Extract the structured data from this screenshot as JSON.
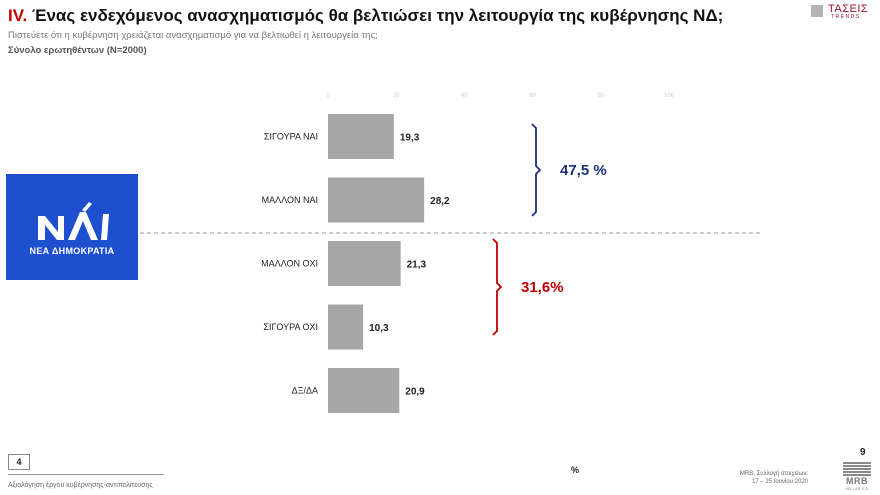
{
  "header": {
    "roman": "IV.",
    "title": "Ένας ενδεχόμενος ανασχηματισμός θα βελτιώσει την λειτουργία της κυβέρνησης ΝΔ;",
    "subtitle": "Πιστεύετε ότι η κυβέρνηση χρειάζεται ανασχηματισμό για να βελτιωθεί η λειτουργεία της;",
    "sample": "Σύνολο ερωτηθέντων (N=2000)"
  },
  "brand": {
    "name": "ΤΑΣΕΙΣ",
    "sub": "TRENDS"
  },
  "logo": {
    "party_name": "ΝΕΑ ΔΗΜΟΚΡΑΤΙΑ"
  },
  "chart_data": {
    "type": "bar",
    "orientation": "horizontal",
    "categories": [
      "ΣΙΓΟΥΡΑ ΝΑΙ",
      "ΜΑΛΛΟΝ ΝΑΙ",
      "ΜΑΛΛΟΝ ΟΧΙ",
      "ΣΙΓΟΥΡΑ ΟΧΙ",
      "ΔΞ/ΔΑ"
    ],
    "values": [
      19.3,
      28.2,
      21.3,
      10.3,
      20.9
    ],
    "value_labels": [
      "19,3",
      "28,2",
      "21,3",
      "10,3",
      "20,9"
    ],
    "xlim": [
      0,
      100
    ],
    "ticks": [
      "0",
      "20",
      "40",
      "60",
      "80",
      "100"
    ],
    "xlabel": "%",
    "bar_color": "#a6a6a6",
    "groups": [
      {
        "label": "47,5 %",
        "from": 0,
        "to": 1,
        "color": "#1f2e7a"
      },
      {
        "label": "31,6%",
        "from": 2,
        "to": 3,
        "color": "#c00000"
      }
    ]
  },
  "footer": {
    "page_box": "4",
    "text": "Αξιολόγηση έργου κυβέρνησης-αντιπολίτευσης",
    "slide_number": "9",
    "source_line1": "MRB, Συλλογή στοιχείων:",
    "source_line2": "17 – 25 Ιουνίου 2020",
    "mrb_name": "MRB",
    "mrb_sub": "HELLAS S.A."
  }
}
